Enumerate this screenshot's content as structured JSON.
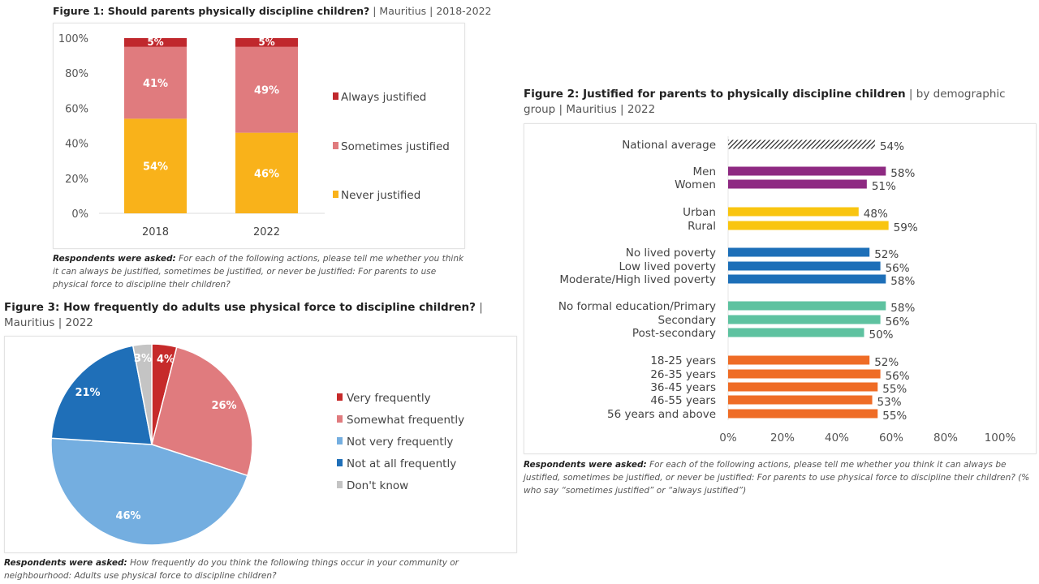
{
  "figure1": {
    "title_bold": "Figure 1: Should parents physically discipline children?",
    "title_rest": " | Mauritius | 2018-2022",
    "caption_bold": "Respondents were asked:",
    "caption_text": " For each of the following actions, please tell me whether you think it can always be justified, sometimes be justified, or never be justified: For parents to use physical force to discipline their children?"
  },
  "figure2": {
    "title_bold": "Figure 2: Justified for parents to physically discipline children",
    "title_rest": " | by demographic group | Mauritius | 2022",
    "caption_bold": "Respondents were asked:",
    "caption_text": " For each of the following actions, please tell me whether you think it can always be justified, sometimes be justified, or never be justified: For parents to use physical force to discipline their children? (% who say “sometimes justified” or “always justified”)"
  },
  "figure3": {
    "title_bold": "Figure 3: How frequently do adults use physical force to discipline children?",
    "title_rest": " | Mauritius | 2022",
    "caption_bold": "Respondents were asked:",
    "caption_text": " How frequently do you think the following things occur in your community or neighbourhood: Adults use physical force to discipline children?"
  },
  "chart_data": [
    {
      "type": "bar",
      "stacked": true,
      "categories": [
        "2018",
        "2022"
      ],
      "series": [
        {
          "name": "Never justified",
          "values": [
            54,
            46
          ],
          "color": "#f9b21a"
        },
        {
          "name": "Sometimes justified",
          "values": [
            41,
            49
          ],
          "color": "#e07b7e"
        },
        {
          "name": "Always justified",
          "values": [
            5,
            5
          ],
          "color": "#c0282d"
        }
      ],
      "yticks": [
        "0%",
        "20%",
        "40%",
        "60%",
        "80%",
        "100%"
      ],
      "ylim": [
        0,
        100
      ],
      "legend": "right"
    },
    {
      "type": "bar",
      "orientation": "horizontal",
      "categories": [
        "National average",
        "Men",
        "Women",
        "Urban",
        "Rural",
        "No lived poverty",
        "Low lived poverty",
        "Moderate/High lived poverty",
        "No formal education/Primary",
        "Secondary",
        "Post-secondary",
        "18-25 years",
        "26-35 years",
        "36-45 years",
        "46-55 years",
        "56 years and above"
      ],
      "values": [
        54,
        58,
        51,
        48,
        59,
        52,
        56,
        58,
        58,
        56,
        50,
        52,
        56,
        55,
        53,
        55
      ],
      "labels": [
        "54%",
        "58%",
        "51%",
        "48%",
        "59%",
        "52%",
        "56%",
        "58%",
        "58%",
        "56%",
        "50%",
        "52%",
        "56%",
        "55%",
        "53%",
        "55%"
      ],
      "groups": [
        0,
        1,
        1,
        2,
        2,
        3,
        3,
        3,
        4,
        4,
        4,
        5,
        5,
        5,
        5,
        5
      ],
      "group_colors": [
        "hatched",
        "#8e2a82",
        "#f9c510",
        "#1d6fb8",
        "#5ec2a0",
        "#ef6c26"
      ],
      "xticks": [
        "0%",
        "20%",
        "40%",
        "60%",
        "80%",
        "100%"
      ],
      "xlim": [
        0,
        100
      ]
    },
    {
      "type": "pie",
      "slices": [
        {
          "name": "Very frequently",
          "value": 4,
          "label": "4%",
          "color": "#c62a2a"
        },
        {
          "name": "Somewhat frequently",
          "value": 26,
          "label": "26%",
          "color": "#e07b7e"
        },
        {
          "name": "Not very frequently",
          "value": 46,
          "label": "46%",
          "color": "#74aee0"
        },
        {
          "name": "Not at all frequently",
          "value": 21,
          "label": "21%",
          "color": "#1f6fb8"
        },
        {
          "name": "Don't know",
          "value": 3,
          "label": "3%",
          "color": "#c4c4c4"
        }
      ],
      "legend": "right"
    }
  ]
}
